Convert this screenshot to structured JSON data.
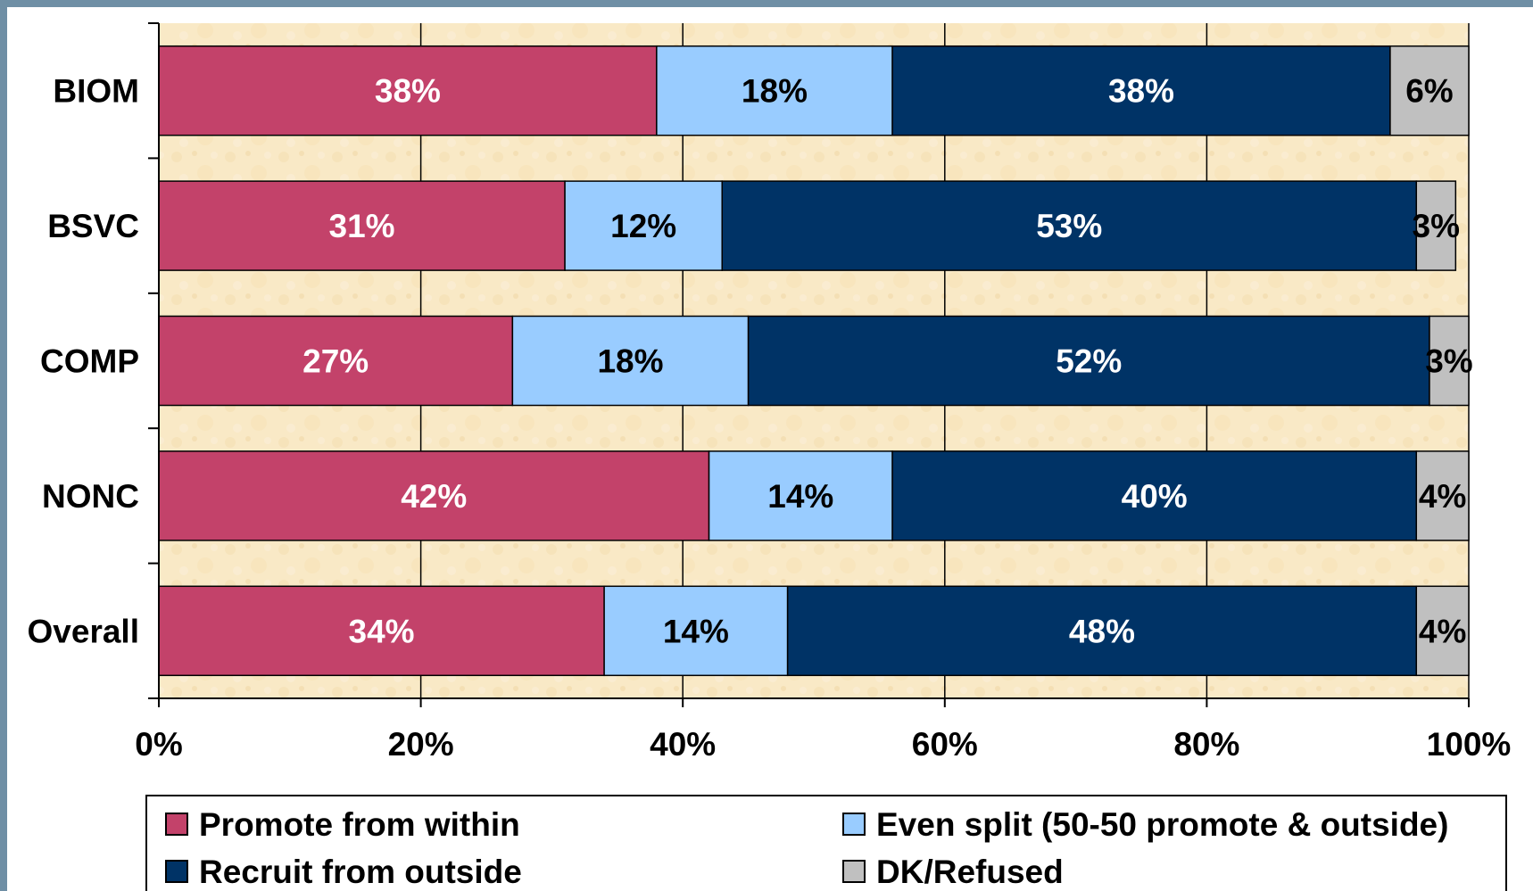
{
  "chart_data": {
    "type": "bar",
    "orientation": "horizontal",
    "stacked": true,
    "percent": true,
    "categories": [
      "BIOM",
      "BSVC",
      "COMP",
      "NONC",
      "Overall"
    ],
    "series": [
      {
        "name": "Promote from within",
        "color": "#c3426a",
        "label_color": "#ffffff",
        "values": [
          38,
          31,
          27,
          42,
          34
        ],
        "labels": [
          "38%",
          "31%",
          "27%",
          "42%",
          "34%"
        ]
      },
      {
        "name": "Even split (50-50 promote & outside)",
        "color": "#99ccff",
        "label_color": "#000000",
        "values": [
          18,
          12,
          18,
          14,
          14
        ],
        "labels": [
          "18%",
          "12%",
          "18%",
          "14%",
          "14%"
        ]
      },
      {
        "name": "Recruit from outside",
        "color": "#003366",
        "label_color": "#ffffff",
        "values": [
          38,
          53,
          52,
          40,
          48
        ],
        "labels": [
          "38%",
          "53%",
          "52%",
          "40%",
          "48%"
        ]
      },
      {
        "name": "DK/Refused",
        "color": "#c0c0c0",
        "label_color": "#000000",
        "values": [
          6,
          3,
          3,
          4,
          4
        ],
        "labels": [
          "6%",
          "3%",
          "3%",
          "4%",
          "4%"
        ]
      }
    ],
    "xticks": [
      "0%",
      "20%",
      "40%",
      "60%",
      "80%",
      "100%"
    ],
    "xlim": [
      0,
      100
    ],
    "grid": true,
    "plot_background": "parchment",
    "legend_position": "bottom",
    "title": "",
    "xlabel": "",
    "ylabel": ""
  }
}
